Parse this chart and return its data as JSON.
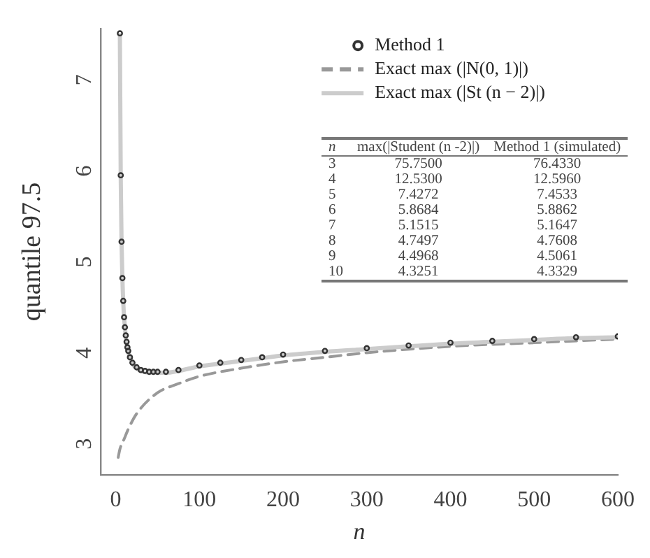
{
  "chart_data": [
    {
      "type": "line",
      "xlabel": "n",
      "ylabel": "quantile 97.5",
      "xlim": [
        -18,
        600
      ],
      "ylim": [
        2.6,
        7.5
      ],
      "xticks": [
        0,
        100,
        200,
        300,
        400,
        500,
        600
      ],
      "yticks": [
        3,
        4,
        5,
        6,
        7
      ],
      "grid": false,
      "legend": "top right",
      "series": [
        {
          "name": "Method 1",
          "type": "scatter",
          "marker": "circle",
          "color": "#333333",
          "x": [
            5,
            6,
            7,
            8,
            9,
            10,
            11,
            12,
            13,
            14,
            15,
            17,
            20,
            25,
            30,
            35,
            40,
            45,
            50,
            60,
            75,
            100,
            125,
            150,
            175,
            200,
            250,
            300,
            350,
            400,
            450,
            500,
            550,
            600
          ],
          "values": [
            7.45,
            5.89,
            5.16,
            4.76,
            4.51,
            4.33,
            4.22,
            4.13,
            4.06,
            4.0,
            3.96,
            3.89,
            3.83,
            3.78,
            3.75,
            3.74,
            3.73,
            3.73,
            3.73,
            3.73,
            3.75,
            3.8,
            3.83,
            3.86,
            3.89,
            3.92,
            3.96,
            3.99,
            4.02,
            4.05,
            4.07,
            4.09,
            4.11,
            4.12
          ]
        },
        {
          "name": "Exact max (|N(0, 1)|)",
          "type": "line",
          "line_style": "dashed",
          "color": "#999999",
          "x": [
            3,
            5,
            10,
            15,
            25,
            50,
            75,
            100,
            150,
            200,
            250,
            300,
            400,
            500,
            600
          ],
          "values": [
            2.79,
            2.88,
            2.99,
            3.1,
            3.27,
            3.5,
            3.6,
            3.68,
            3.77,
            3.84,
            3.89,
            3.94,
            4.01,
            4.05,
            4.09
          ]
        },
        {
          "name": "Exact max (|St (n − 2)|)",
          "type": "line",
          "line_style": "solid",
          "color": "#cccccc",
          "x": [
            5,
            6,
            7,
            8,
            9,
            10,
            12,
            15,
            20,
            25,
            30,
            40,
            50,
            60,
            75,
            100,
            125,
            150,
            175,
            200,
            250,
            300,
            350,
            400,
            450,
            500,
            550,
            600
          ],
          "values": [
            7.43,
            5.87,
            5.15,
            4.75,
            4.5,
            4.33,
            4.12,
            3.95,
            3.82,
            3.77,
            3.74,
            3.72,
            3.72,
            3.72,
            3.74,
            3.79,
            3.82,
            3.85,
            3.88,
            3.91,
            3.95,
            3.98,
            4.01,
            4.04,
            4.06,
            4.08,
            4.1,
            4.11
          ]
        }
      ]
    },
    {
      "type": "heatmap",
      "ylabel": "n",
      "categories": [
        "max(|Student (n -2)|)",
        "Method 1 (simulated)"
      ],
      "y_categories": [
        "3",
        "4",
        "5",
        "6",
        "7",
        "8",
        "9",
        "10"
      ],
      "cells": [
        [
          75.75,
          76.433
        ],
        [
          12.53,
          12.596
        ],
        [
          7.4272,
          7.4533
        ],
        [
          5.8684,
          5.8862
        ],
        [
          5.1515,
          5.1647
        ],
        [
          4.7497,
          4.7608
        ],
        [
          4.4968,
          4.5061
        ],
        [
          4.3251,
          4.3329
        ]
      ],
      "cell_labels": [
        [
          "75.7500",
          "76.4330"
        ],
        [
          "12.5300",
          "12.5960"
        ],
        [
          "7.4272",
          "7.4533"
        ],
        [
          "5.8684",
          "5.8862"
        ],
        [
          "5.1515",
          "5.1647"
        ],
        [
          "4.7497",
          "4.7608"
        ],
        [
          "4.4968",
          "4.5061"
        ],
        [
          "4.3251",
          "4.3329"
        ]
      ]
    }
  ]
}
